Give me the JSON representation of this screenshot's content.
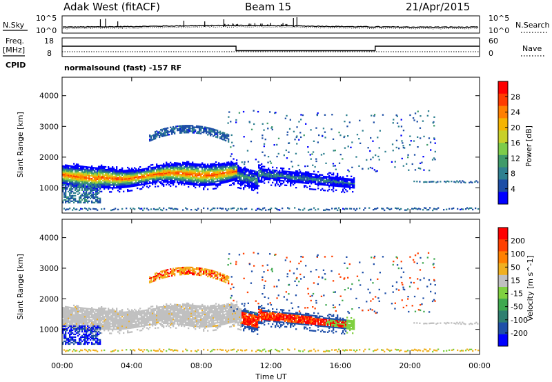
{
  "header": {
    "site": "Adak West (fitACF)",
    "beam": "Beam 15",
    "date": "21/Apr/2015"
  },
  "nsky_panel": {
    "left_label": "N.Sky",
    "left_ticks": [
      "10^5",
      "10^0"
    ],
    "right_label": "N.Search",
    "right_ticks": [
      "10^5",
      "10^0"
    ]
  },
  "freq_panel": {
    "left_label_line1": "Freq.",
    "left_label_line2": "[MHz]",
    "left_ticks": [
      "18",
      "8"
    ],
    "right_label": "Nave",
    "right_ticks": [
      "60",
      "0"
    ],
    "cpid_label": "CPID",
    "cpid_text": "normalsound (fast) -157 RF"
  },
  "chart_data": [
    {
      "type": "heatmap",
      "title": "",
      "ylabel": "Slant Range [km]",
      "y_ticks": [
        "4000",
        "3000",
        "2000",
        "1000"
      ],
      "ylim": [
        180,
        4600
      ],
      "xlim_hours": [
        0,
        24
      ],
      "colorbar_label": "Power [dB]",
      "colorbar_ticks": [
        "28",
        "24",
        "20",
        "16",
        "12",
        "8",
        "4"
      ],
      "colorbar_range": [
        0,
        32
      ],
      "colorbar_colors": [
        "#0000ff",
        "#1d4ea6",
        "#2f8090",
        "#3f9b6a",
        "#7dcc4a",
        "#c8d02a",
        "#f5b400",
        "#ff7f00",
        "#ff3c00",
        "#ff0000"
      ],
      "features": [
        {
          "name": "main scatter band",
          "start_h": 0,
          "end_h": 16.7,
          "center_km_start": 1350,
          "center_km_end": 1100,
          "peak_db": 29
        },
        {
          "name": "far range arc",
          "start_h": 5.0,
          "end_h": 9.5,
          "center_km": 2850,
          "peak_db": 6
        }
      ]
    },
    {
      "type": "heatmap",
      "title": "",
      "ylabel": "Slant Range [km]",
      "y_ticks": [
        "4000",
        "3000",
        "2000",
        "1000"
      ],
      "ylim": [
        180,
        4600
      ],
      "xlim_hours": [
        0,
        24
      ],
      "colorbar_label": "Velocity [m s^-1]",
      "colorbar_ticks": [
        "200",
        "100",
        "50",
        "15",
        "-15",
        "-50",
        "-100",
        "-200"
      ],
      "colorbar_colors": [
        "#0000ff",
        "#1f4fa8",
        "#2f7f70",
        "#3fa950",
        "#7fd040",
        "#c0c0c0",
        "#f0b020",
        "#ff8000",
        "#ff4000",
        "#ff0000"
      ],
      "ground_scatter_color": "#c0c0c0"
    }
  ],
  "x_axis": {
    "label": "Time UT",
    "ticks": [
      "00:00",
      "04:00",
      "08:00",
      "12:00",
      "16:00",
      "20:00",
      "00:00"
    ]
  },
  "colors": {
    "axis": "#000000",
    "ground_scatter": "#c0c0c0"
  }
}
